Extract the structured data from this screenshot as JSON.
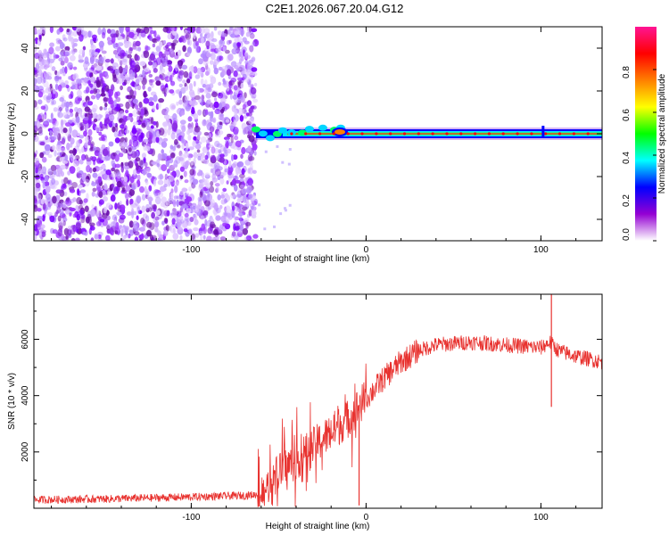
{
  "title": "C2E1.2026.067.20.04.G12",
  "chart_data": [
    {
      "type": "heatmap",
      "xlabel": "Height of straight line (km)",
      "ylabel": "Frequency (Hz)",
      "xlim": [
        -190,
        135
      ],
      "ylim": [
        -50,
        50
      ],
      "xticks": [
        -100,
        0,
        100
      ],
      "xtick_labels": [
        "-100",
        "0",
        "100"
      ],
      "yticks": [
        -40,
        -20,
        0,
        20,
        40
      ],
      "ytick_labels": [
        "-40",
        "-20",
        "0",
        "20",
        "40"
      ],
      "noise_region_x": [
        -190,
        -63
      ],
      "signal_line": {
        "freq": 0,
        "x_start": -63,
        "x_end": 135
      },
      "colorbar": {
        "label": "Normalized spectral amplitude",
        "range": [
          0,
          1
        ],
        "ticks": [
          0.0,
          0.2,
          0.4,
          0.6,
          0.8
        ],
        "tick_labels": [
          "0.0",
          "0.2",
          "0.4",
          "0.6",
          "0.8"
        ],
        "colormap": [
          "#ffffff",
          "#9400d3",
          "#0000ff",
          "#00ffff",
          "#00ff00",
          "#ffff00",
          "#ff7f00",
          "#ff0000",
          "#ff1493"
        ]
      }
    },
    {
      "type": "line",
      "xlabel": "Height of straight line (km)",
      "ylabel": "SNR (10 * v/v)",
      "xlim": [
        -190,
        135
      ],
      "ylim": [
        0,
        7600
      ],
      "xticks": [
        -100,
        0,
        100
      ],
      "xtick_labels": [
        "-100",
        "0",
        "100"
      ],
      "yticks": [
        2000,
        4000,
        6000
      ],
      "ytick_labels": [
        "2000",
        "4000",
        "6000"
      ],
      "color": "#e8322f",
      "series": [
        {
          "name": "SNR",
          "x": [
            -190,
            -150,
            -100,
            -70,
            -60,
            -55,
            -50,
            -40,
            -30,
            -20,
            -10,
            0,
            10,
            20,
            30,
            40,
            50,
            60,
            70,
            80,
            90,
            100,
            105,
            110,
            120,
            135
          ],
          "y": [
            300,
            330,
            400,
            450,
            500,
            900,
            1300,
            1700,
            2200,
            2700,
            3200,
            3900,
            4600,
            5200,
            5600,
            5800,
            5850,
            5900,
            5850,
            5800,
            5750,
            5700,
            5900,
            5600,
            5400,
            5200
          ]
        }
      ],
      "spikes": [
        {
          "x": 106,
          "y": 7600
        },
        {
          "x": 106,
          "y": 3600
        },
        {
          "x": -4,
          "y": 100
        }
      ]
    }
  ]
}
